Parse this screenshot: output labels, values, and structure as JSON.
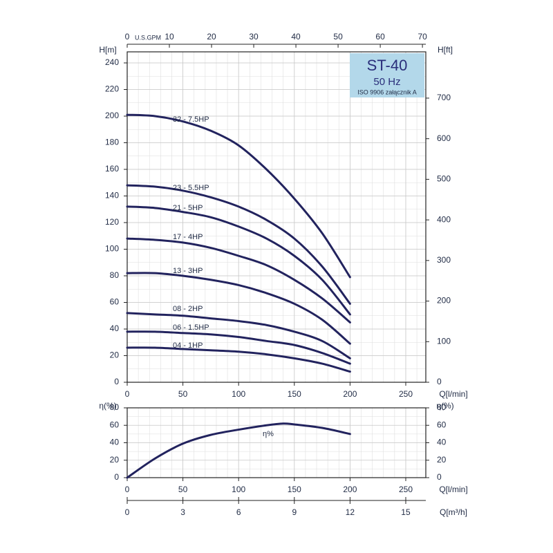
{
  "chart_data": [
    {
      "type": "line",
      "xlabel": "Q[l/min]",
      "ylabel": "H[m]",
      "y2label": "H[ft]",
      "x2label": "U.S.GPM",
      "x": [
        0,
        25,
        50,
        75,
        100,
        125,
        150,
        175,
        200
      ],
      "xlim": [
        0,
        268
      ],
      "xticks": [
        0,
        50,
        100,
        150,
        200,
        250
      ],
      "ylim": [
        0,
        248
      ],
      "yticks": [
        0,
        20,
        40,
        60,
        80,
        100,
        120,
        140,
        160,
        180,
        200,
        220,
        240
      ],
      "y2lim": [
        0,
        814
      ],
      "y2ticks": [
        0,
        100,
        200,
        300,
        400,
        500,
        600,
        700
      ],
      "x2lim": [
        0,
        70.8
      ],
      "x2ticks": [
        0,
        10,
        20,
        30,
        40,
        50,
        60,
        70
      ],
      "grid": true,
      "badge": {
        "title": "ST-40",
        "subtitle": "50 Hz",
        "note": "ISO 9906 załącznik A",
        "color": "#b3d8ea"
      },
      "series": [
        {
          "name": "32 - 7.5HP",
          "color": "#22235e",
          "values": [
            201,
            200,
            196,
            189,
            178,
            160,
            138,
            112,
            79
          ]
        },
        {
          "name": "23 - 5.5HP",
          "color": "#22235e",
          "values": [
            148,
            147,
            144,
            139,
            132,
            122,
            108,
            87,
            59
          ]
        },
        {
          "name": "21 - 5HP",
          "color": "#22235e",
          "values": [
            132,
            131,
            128,
            124,
            117,
            108,
            95,
            77,
            51
          ]
        },
        {
          "name": "17 - 4HP",
          "color": "#22235e",
          "values": [
            108,
            107,
            105,
            101,
            95,
            88,
            77,
            63,
            45
          ]
        },
        {
          "name": "13 - 3HP",
          "color": "#22235e",
          "values": [
            82,
            82,
            80,
            77,
            73,
            67,
            59,
            47,
            29
          ]
        },
        {
          "name": "08 - 2HP",
          "color": "#22235e",
          "values": [
            52,
            51,
            50,
            48,
            46,
            43,
            38,
            31,
            18
          ]
        },
        {
          "name": "06 - 1.5HP",
          "color": "#22235e",
          "values": [
            38,
            38,
            37,
            36,
            34,
            31,
            28,
            22,
            14
          ]
        },
        {
          "name": "04 - 1HP",
          "color": "#22235e",
          "values": [
            26,
            26,
            25,
            24,
            23,
            21,
            18,
            14,
            8
          ]
        }
      ]
    },
    {
      "type": "line",
      "xlabel": "Q[l/min]",
      "ylabel": "η(%)",
      "y2label": "η(%)",
      "x3label": "Q[m³/h]",
      "x": [
        0,
        25,
        50,
        75,
        100,
        125,
        140,
        150,
        175,
        200
      ],
      "xlim": [
        0,
        268
      ],
      "xticks": [
        0,
        50,
        100,
        150,
        200,
        250
      ],
      "ylim": [
        0,
        80
      ],
      "yticks": [
        0,
        20,
        40,
        60,
        80
      ],
      "y2lim": [
        0,
        80
      ],
      "y2ticks": [
        0,
        20,
        40,
        60,
        80
      ],
      "x3lim": [
        0,
        16.08
      ],
      "x3ticks": [
        0,
        3,
        6,
        9,
        12,
        15
      ],
      "grid": true,
      "series": [
        {
          "name": "η%",
          "color": "#22235e",
          "values": [
            0,
            22,
            39,
            49,
            55,
            60,
            62,
            61,
            57,
            50
          ]
        }
      ]
    }
  ]
}
